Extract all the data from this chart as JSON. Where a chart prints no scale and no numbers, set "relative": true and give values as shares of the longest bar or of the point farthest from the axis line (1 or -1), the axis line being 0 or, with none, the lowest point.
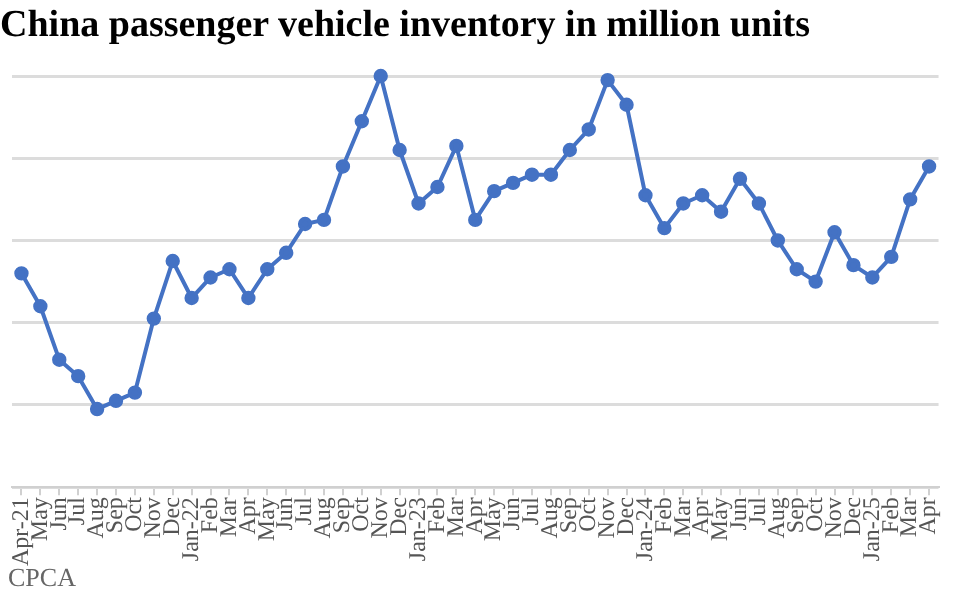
{
  "chart_data": {
    "type": "line",
    "title": "China passenger vehicle inventory in million units",
    "categories": [
      "Apr-21",
      "May",
      "Jun",
      "Jul",
      "Aug",
      "Sep",
      "Oct",
      "Nov",
      "Dec",
      "Jan-22",
      "Feb",
      "Mar",
      "Apr",
      "May",
      "Jun",
      "Jul",
      "Aug",
      "Sep",
      "Oct",
      "Nov",
      "Dec",
      "Jan-23",
      "Feb",
      "Mar",
      "Apr",
      "May",
      "Jun",
      "Jul",
      "Aug",
      "Sep",
      "Oct",
      "Nov",
      "Dec",
      "Jan-24",
      "Feb",
      "Mar",
      "Apr",
      "May",
      "Jun",
      "Jul",
      "Aug",
      "Sep",
      "Oct",
      "Nov",
      "Dec",
      "Jan-25",
      "Feb",
      "Mar",
      "Apr"
    ],
    "series": [
      {
        "color": "#4472c4",
        "values": [
          0.52,
          0.44,
          0.31,
          0.27,
          0.19,
          0.21,
          0.23,
          0.41,
          0.55,
          0.46,
          0.51,
          0.53,
          0.46,
          0.53,
          0.57,
          0.64,
          0.65,
          0.78,
          0.89,
          1,
          0.82,
          0.69,
          0.73,
          0.83,
          0.65,
          0.72,
          0.74,
          0.76,
          0.76,
          0.82,
          0.87,
          0.99,
          0.93,
          0.71,
          0.63,
          0.69,
          0.71,
          0.67,
          0.75,
          0.69,
          0.6,
          0.53,
          0.5,
          0.62,
          0.54,
          0.51,
          0.56,
          0.7,
          0.78
        ]
      }
    ],
    "relative": true,
    "grid": "y",
    "marker": "circle",
    "line_style": "solid",
    "legend": false,
    "annotations": [
      "CPCA"
    ]
  }
}
